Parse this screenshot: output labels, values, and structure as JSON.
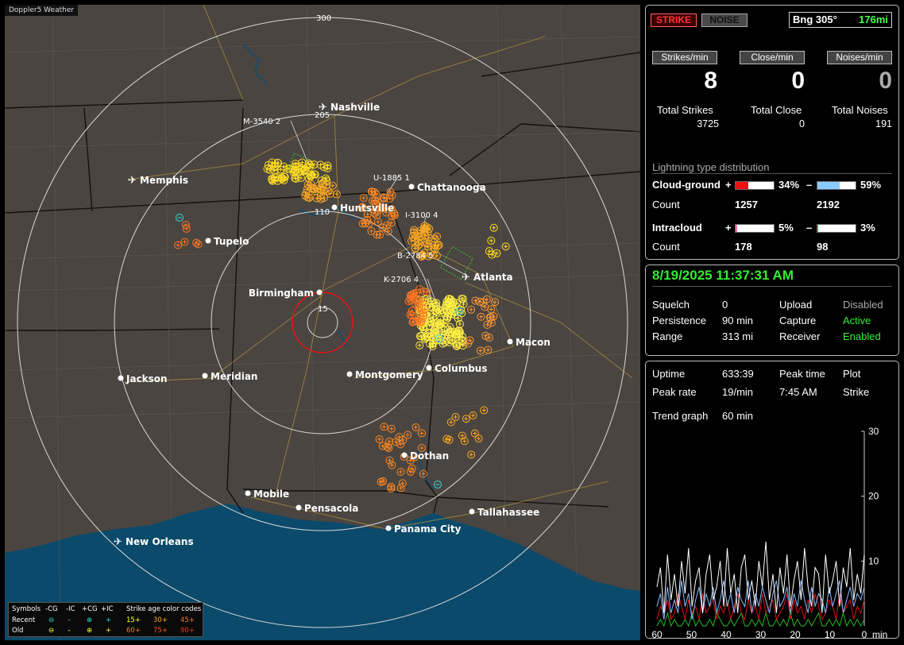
{
  "window_title": "Doppler5 Weather",
  "map": {
    "rings": [
      "300",
      "205",
      "110",
      "15"
    ],
    "cities": [
      {
        "name": "Nashville",
        "airport": true
      },
      {
        "name": "Memphis",
        "airport": true
      },
      {
        "name": "Chattanooga",
        "airport": false
      },
      {
        "name": "Huntsville",
        "airport": false
      },
      {
        "name": "Tupelo",
        "airport": false
      },
      {
        "name": "Atlanta",
        "airport": true
      },
      {
        "name": "Birmingham",
        "airport": false
      },
      {
        "name": "Macon",
        "airport": false
      },
      {
        "name": "Jackson",
        "airport": false
      },
      {
        "name": "Meridian",
        "airport": false
      },
      {
        "name": "Montgomery",
        "airport": false
      },
      {
        "name": "Columbus",
        "airport": false
      },
      {
        "name": "Dothan",
        "airport": false
      },
      {
        "name": "Mobile",
        "airport": false
      },
      {
        "name": "Pensacola",
        "airport": false
      },
      {
        "name": "Tallahassee",
        "airport": false
      },
      {
        "name": "Panama City",
        "airport": false
      },
      {
        "name": "New Orleans",
        "airport": true
      }
    ],
    "storm_cells": [
      "M-3540 2",
      "U-1885 1",
      "I-3100 4",
      "B-2784 5",
      "K-2706 4"
    ],
    "legend": {
      "symbols_label": "Symbols",
      "col_neg_cg": "-CG",
      "col_neg_ic": "-IC",
      "col_pos_cg": "+CG",
      "col_pos_ic": "+IC",
      "age_title": "Strike age color codes",
      "recent_label": "Recent",
      "old_label": "Old",
      "age_recent": [
        "15+",
        "30+",
        "45+"
      ],
      "age_old": [
        "60+",
        "75+",
        "90+"
      ]
    }
  },
  "top": {
    "strike_tab": "STRIKE",
    "noise_tab": "NOISE",
    "bearing": "Bng 305°",
    "range": "176mi",
    "strikes_min_label": "Strikes/min",
    "close_min_label": "Close/min",
    "noises_min_label": "Noises/min",
    "strikes_min": "8",
    "close_min": "0",
    "noises_min": "0",
    "total_strikes_label": "Total Strikes",
    "total_close_label": "Total Close",
    "total_noises_label": "Total Noises",
    "total_strikes": "3725",
    "total_close": "0",
    "total_noises": "191",
    "dist_title": "Lightning type distribution",
    "cg_label": "Cloud-ground",
    "ic_label": "Intracloud",
    "plus": "+",
    "minus": "–",
    "count_label": "Count",
    "cg_pos_pct": "34%",
    "cg_neg_pct": "59%",
    "ic_pos_pct": "5%",
    "ic_neg_pct": "3%",
    "cg_pos_frac": 0.34,
    "cg_neg_frac": 0.59,
    "ic_pos_frac": 0.05,
    "ic_neg_frac": 0.03,
    "cg_pos_count": "1257",
    "cg_neg_count": "2192",
    "ic_pos_count": "178",
    "ic_neg_count": "98",
    "bar_colors": {
      "cg_pos": "#ee1111",
      "cg_neg": "#88ccff",
      "ic_pos": "#ee77aa",
      "ic_neg": "#33aa33"
    }
  },
  "status": {
    "datetime": "8/19/2025 11:37:31 AM",
    "squelch_label": "Squelch",
    "squelch": "0",
    "persistence_label": "Persistence",
    "persistence": "90 min",
    "range_label": "Range",
    "range": "313 mi",
    "upload_label": "Upload",
    "upload": "Disabled",
    "capture_label": "Capture",
    "capture": "Active",
    "receiver_label": "Receiver",
    "receiver": "Enabled"
  },
  "stats": {
    "uptime_label": "Uptime",
    "uptime": "633:39",
    "peak_time_label": "Peak time",
    "peak_time": "7:45 AM",
    "plot_label": "Plot",
    "plot": "Strike",
    "peak_rate_label": "Peak rate",
    "peak_rate": "19/min",
    "trend_label": "Trend graph",
    "trend": "60 min"
  },
  "chart_data": {
    "type": "line",
    "xlabel": "min",
    "x_ticks": [
      "60",
      "50",
      "40",
      "30",
      "20",
      "10",
      "0"
    ],
    "y_ticks": [
      "30",
      "20",
      "10"
    ],
    "ylim": [
      0,
      30
    ],
    "xlim": [
      60,
      0
    ],
    "series": [
      {
        "color": "#ffffff",
        "values": [
          6,
          9,
          2,
          11,
          4,
          8,
          3,
          10,
          5,
          12,
          3,
          7,
          9,
          2,
          8,
          11,
          4,
          6,
          10,
          3,
          12,
          5,
          8,
          2,
          9,
          11,
          4,
          7,
          3,
          10,
          6,
          13,
          4,
          8,
          2,
          9,
          5,
          11,
          3,
          7,
          10,
          4,
          12,
          6,
          3,
          9,
          8,
          2,
          11,
          5,
          7,
          10,
          3,
          9,
          6,
          12,
          4,
          8,
          5,
          11
        ]
      },
      {
        "color": "#88bbff",
        "values": [
          3,
          5,
          1,
          6,
          2,
          4,
          2,
          7,
          3,
          5,
          1,
          4,
          6,
          2,
          5,
          3,
          6,
          2,
          4,
          7,
          3,
          5,
          2,
          6,
          4,
          3,
          7,
          2,
          5,
          3,
          6,
          4,
          2,
          5,
          7,
          3,
          4,
          6,
          2,
          5,
          3,
          7,
          4,
          2,
          6,
          3,
          5,
          4,
          2,
          6,
          3,
          5,
          7,
          2,
          4,
          6,
          3,
          5,
          4,
          6
        ]
      },
      {
        "color": "#dd1111",
        "values": [
          1,
          3,
          2,
          4,
          1,
          2,
          5,
          3,
          1,
          4,
          2,
          3,
          1,
          5,
          2,
          3,
          4,
          1,
          3,
          2,
          4,
          1,
          3,
          5,
          2,
          1,
          4,
          2,
          3,
          1,
          5,
          2,
          3,
          4,
          1,
          2,
          3,
          5,
          1,
          4,
          2,
          3,
          1,
          4,
          2,
          5,
          3,
          1,
          2,
          4,
          3,
          1,
          5,
          2,
          3,
          4,
          1,
          3,
          2,
          4
        ]
      },
      {
        "color": "#22bb22",
        "values": [
          0,
          1,
          0,
          2,
          0,
          1,
          0,
          0,
          1,
          0,
          2,
          0,
          1,
          0,
          0,
          1,
          0,
          2,
          1,
          0,
          0,
          1,
          0,
          1,
          2,
          0,
          0,
          1,
          0,
          1,
          0,
          2,
          0,
          0,
          1,
          0,
          1,
          0,
          2,
          0,
          1,
          0,
          0,
          1,
          0,
          1,
          2,
          0,
          0,
          1,
          0,
          1,
          0,
          2,
          0,
          1,
          0,
          1,
          0,
          1
        ]
      }
    ]
  }
}
